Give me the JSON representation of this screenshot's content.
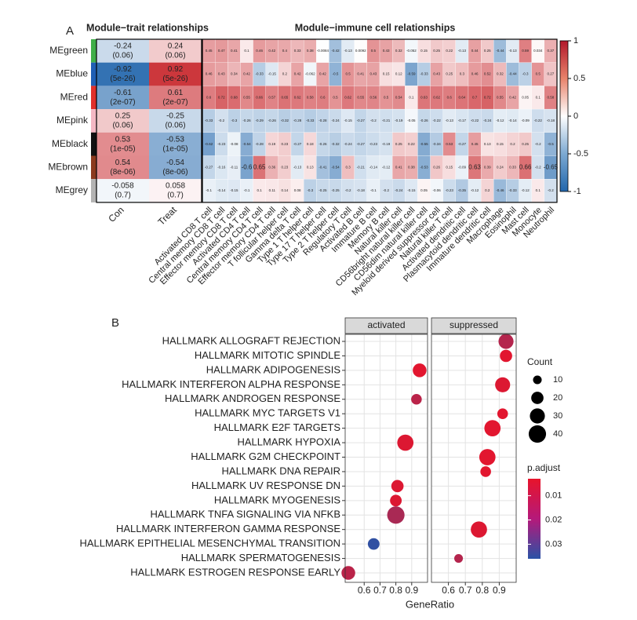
{
  "chart_data": [
    {
      "type": "heatmap",
      "panel_label": "A",
      "title": "Module−trait relationships",
      "rows": [
        "MEgreen",
        "MEblue",
        "MEred",
        "MEpink",
        "MEblack",
        "MEbrown",
        "MEgrey"
      ],
      "row_colors": [
        "#3fae49",
        "#1f5fb4",
        "#e0302a",
        "#f5b8c4",
        "#111111",
        "#8b3a1e",
        "#b3b3b3"
      ],
      "columns": [
        "Con",
        "Treat"
      ],
      "values": [
        [
          -0.24,
          0.24
        ],
        [
          -0.92,
          0.92
        ],
        [
          -0.61,
          0.61
        ],
        [
          0.25,
          -0.25
        ],
        [
          0.53,
          -0.53
        ],
        [
          0.54,
          -0.54
        ],
        [
          -0.058,
          0.058
        ]
      ],
      "pvalue_labels": [
        [
          "(0.06)",
          "(0.06)"
        ],
        [
          "(5e-26)",
          "(5e-26)"
        ],
        [
          "(2e-07)",
          "(2e-07)"
        ],
        [
          "(0.06)",
          "(0.06)"
        ],
        [
          "(1e-05)",
          "(1e-05)"
        ],
        [
          "(8e-06)",
          "(8e-06)"
        ],
        [
          "(0.7)",
          "(0.7)"
        ]
      ],
      "clim": [
        -1,
        1
      ]
    },
    {
      "type": "heatmap",
      "title": "Module−immune cell relationships",
      "columns": [
        "Activated CD8 T cell",
        "Central memory CD8 T cell",
        "Effector memory CD8 T cell",
        "Activated CD4 T cell",
        "Central memory CD4 T cell",
        "Effector memory CD4 T cell",
        "T follicular helper cell",
        "Gamma delta T cell",
        "Type 1 T helper cell",
        "Type 17 T helper cell",
        "Type 2 T helper cell",
        "Regulatory T cell",
        "Activated B cell",
        "Immature B cell",
        "Memory B cell",
        "Natural killer cell",
        "CD56bright natural killer cell",
        "CD56dim natural killer cell",
        "Myeloid derived suppressor cell",
        "Natural killer T cell",
        "Activated dendritic cell",
        "Plasmacytoid dendritic cell",
        "Immature dendritic cell",
        "Macrophage",
        "Eosinophil",
        "Mast cell",
        "Monocyte",
        "Neutrophil"
      ],
      "values": [
        [
          0.45,
          0.47,
          0.41,
          0.1,
          0.46,
          0.42,
          0.4,
          0.33,
          0.38,
          -0.0084,
          -0.42,
          -0.13,
          0.0092,
          0.5,
          0.43,
          0.32,
          -0.052,
          0.15,
          0.25,
          0.22,
          -0.13,
          0.44,
          0.25,
          -0.44,
          -0.13,
          0.59,
          0.034,
          0.37
        ],
        [
          0.46,
          0.43,
          0.34,
          0.42,
          -0.33,
          -0.15,
          0.2,
          0.42,
          -0.062,
          0.42,
          -0.5,
          0.5,
          0.41,
          0.43,
          0.15,
          0.12,
          -0.59,
          -0.33,
          0.43,
          0.25,
          0.3,
          0.46,
          0.52,
          0.32,
          -0.44,
          -0.3,
          0.5,
          0.27
        ],
        [
          0.6,
          0.72,
          0.68,
          0.55,
          0.66,
          0.57,
          0.65,
          0.62,
          0.58,
          0.6,
          0.5,
          0.62,
          0.55,
          0.56,
          0.5,
          0.54,
          0.1,
          0.63,
          0.62,
          0.6,
          0.64,
          0.7,
          0.72,
          0.55,
          0.42,
          0.05,
          0.1,
          0.58
        ],
        [
          -0.33,
          -0.2,
          -0.3,
          -0.26,
          -0.29,
          -0.26,
          -0.32,
          -0.28,
          -0.33,
          -0.28,
          -0.24,
          -0.15,
          -0.27,
          -0.2,
          -0.21,
          -0.19,
          -0.05,
          -0.26,
          -0.22,
          -0.13,
          -0.17,
          -0.22,
          -0.24,
          -0.12,
          -0.14,
          -0.09,
          -0.22,
          -0.18
        ],
        [
          -0.62,
          -0.23,
          -0.08,
          -0.54,
          -0.28,
          0.19,
          0.23,
          -0.27,
          0.18,
          -0.26,
          -0.32,
          -0.24,
          -0.27,
          -0.23,
          -0.19,
          0.25,
          0.22,
          -0.55,
          -0.34,
          0.53,
          -0.27,
          0.45,
          0.13,
          0.15,
          0.2,
          0.25,
          -0.2,
          -0.5
        ],
        [
          -0.27,
          -0.16,
          -0.11,
          -0.6,
          0.65,
          0.36,
          0.23,
          -0.13,
          0.13,
          -0.41,
          -0.54,
          0.3,
          -0.21,
          -0.14,
          -0.12,
          0.41,
          0.38,
          -0.53,
          0.26,
          0.15,
          -0.09,
          0.63,
          0.39,
          0.24,
          0.33,
          0.66,
          -0.2,
          -0.65
        ],
        [
          -0.1,
          -0.14,
          -0.15,
          -0.1,
          0.1,
          0.11,
          0.14,
          0.08,
          -0.3,
          -0.25,
          -0.25,
          -0.2,
          -0.18,
          -0.1,
          -0.2,
          -0.24,
          -0.15,
          0.05,
          -0.06,
          -0.23,
          -0.35,
          -0.12,
          0.2,
          -0.46,
          -0.33,
          -0.12,
          0.1,
          -0.2
        ]
      ],
      "clim": [
        -1,
        1
      ],
      "colorbar_ticks": [
        1,
        0.5,
        0,
        -0.5,
        -1
      ]
    },
    {
      "type": "dotplot",
      "panel_label": "B",
      "x_label": "GeneRatio",
      "categories": [
        "HALLMARK ALLOGRAFT REJECTION",
        "HALLMARK MITOTIC SPINDLE",
        "HALLMARK ADIPOGENESIS",
        "HALLMARK INTERFERON ALPHA RESPONSE",
        "HALLMARK ANDROGEN RESPONSE",
        "HALLMARK MYC TARGETS V1",
        "HALLMARK E2F TARGETS",
        "HALLMARK HYPOXIA",
        "HALLMARK G2M CHECKPOINT",
        "HALLMARK DNA REPAIR",
        "HALLMARK UV RESPONSE DN",
        "HALLMARK MYOGENESIS",
        "HALLMARK TNFA SIGNALING VIA NFKB",
        "HALLMARK INTERFERON GAMMA RESPONSE",
        "HALLMARK EPITHELIAL MESENCHYMAL TRANSITION",
        "HALLMARK SPERMATOGENESIS",
        "HALLMARK ESTROGEN RESPONSE EARLY"
      ],
      "facets": [
        {
          "name": "activated",
          "xlim": [
            0.48,
            1.0
          ],
          "xticks": [
            0.6,
            0.7,
            0.8,
            0.9
          ],
          "values": [
            null,
            null,
            0.95,
            null,
            0.93,
            null,
            null,
            0.86,
            null,
            null,
            0.81,
            0.8,
            0.8,
            null,
            0.66,
            null,
            0.5
          ],
          "counts": [
            null,
            null,
            25,
            null,
            15,
            null,
            null,
            35,
            null,
            null,
            20,
            18,
            40,
            null,
            18,
            null,
            25
          ],
          "p_adjust": [
            null,
            null,
            0.004,
            null,
            0.011,
            null,
            null,
            0.005,
            null,
            null,
            0.005,
            0.005,
            0.014,
            null,
            0.035,
            null,
            0.011
          ]
        },
        {
          "name": "suppressed",
          "xlim": [
            0.5,
            1.0
          ],
          "xticks": [
            0.6,
            0.7,
            0.8,
            0.9
          ],
          "values": [
            0.94,
            0.94,
            null,
            0.92,
            null,
            0.92,
            0.86,
            null,
            0.83,
            0.82,
            null,
            null,
            null,
            0.78,
            null,
            0.66,
            null
          ],
          "counts": [
            30,
            20,
            null,
            30,
            null,
            15,
            35,
            null,
            35,
            15,
            null,
            null,
            null,
            35,
            null,
            10,
            null
          ],
          "p_adjust": [
            0.012,
            0.004,
            null,
            0.005,
            null,
            0.004,
            0.004,
            null,
            0.004,
            0.004,
            null,
            null,
            null,
            0.005,
            null,
            0.012,
            null
          ]
        }
      ],
      "size_title": "Count",
      "size_ticks": [
        10,
        20,
        30,
        40
      ],
      "color_title": "p.adjust",
      "color_ticks": [
        0.01,
        0.02,
        0.03
      ],
      "color_lim": [
        0.003,
        0.036
      ],
      "color_low": "#e8142b",
      "color_high": "#2a52a6"
    }
  ]
}
